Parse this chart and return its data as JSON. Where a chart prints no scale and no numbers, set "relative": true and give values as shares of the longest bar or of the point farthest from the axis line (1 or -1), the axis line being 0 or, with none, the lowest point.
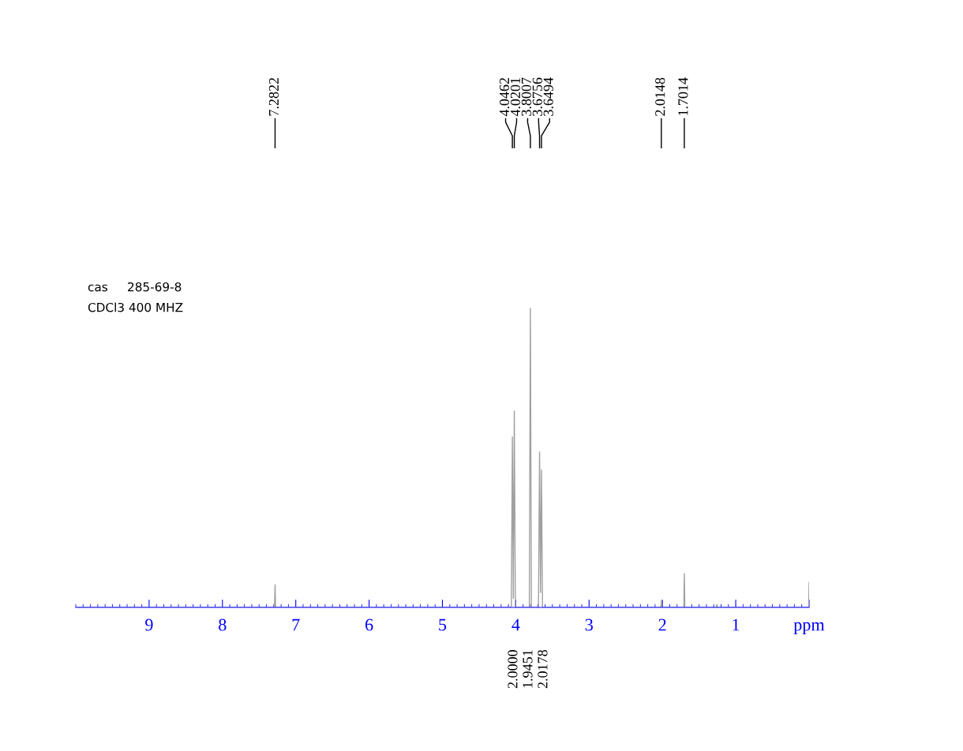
{
  "chart_data": {
    "type": "line",
    "relative": true,
    "x": [
      10,
      7.29,
      7.2822,
      7.275,
      4.06,
      4.0462,
      4.033,
      4.0201,
      4.005,
      3.815,
      3.8007,
      3.787,
      3.69,
      3.6756,
      3.662,
      3.6494,
      3.635,
      2.021,
      2.0148,
      2.008,
      1.708,
      1.7014,
      1.694,
      1.265,
      1.258,
      1.25,
      0.006,
      0.0
    ],
    "series": [
      {
        "color": "#a0a0a0",
        "values": [
          0,
          0,
          0.076,
          0,
          0,
          0.57,
          0.03,
          0.657,
          0,
          0,
          1.0,
          0,
          0,
          0.52,
          0.05,
          0.46,
          0,
          0,
          0.023,
          0,
          0,
          0.113,
          0,
          0,
          0.01,
          0,
          0,
          0.084
        ]
      }
    ],
    "xlim": [
      10,
      0
    ],
    "xticks": [
      9,
      8,
      7,
      6,
      5,
      4,
      3,
      2,
      1,
      {
        "value": 0,
        "label": "ppm"
      }
    ],
    "grid": false,
    "annotations": [
      "cas     285-69-8",
      "CDCl3 400 MHZ",
      {
        "text": "7.2822",
        "x": 7.2822
      },
      {
        "text": "4.0462",
        "x": 4.0462
      },
      {
        "text": "4.0201",
        "x": 4.0201
      },
      {
        "text": "3.8007",
        "x": 3.8007
      },
      {
        "text": "3.6756",
        "x": 3.6756
      },
      {
        "text": "3.6494",
        "x": 3.6494
      },
      {
        "text": "2.0148",
        "x": 2.0148
      },
      {
        "text": "1.7014",
        "x": 1.7014
      },
      "2.0000",
      "1.9451",
      "2.0178"
    ]
  }
}
